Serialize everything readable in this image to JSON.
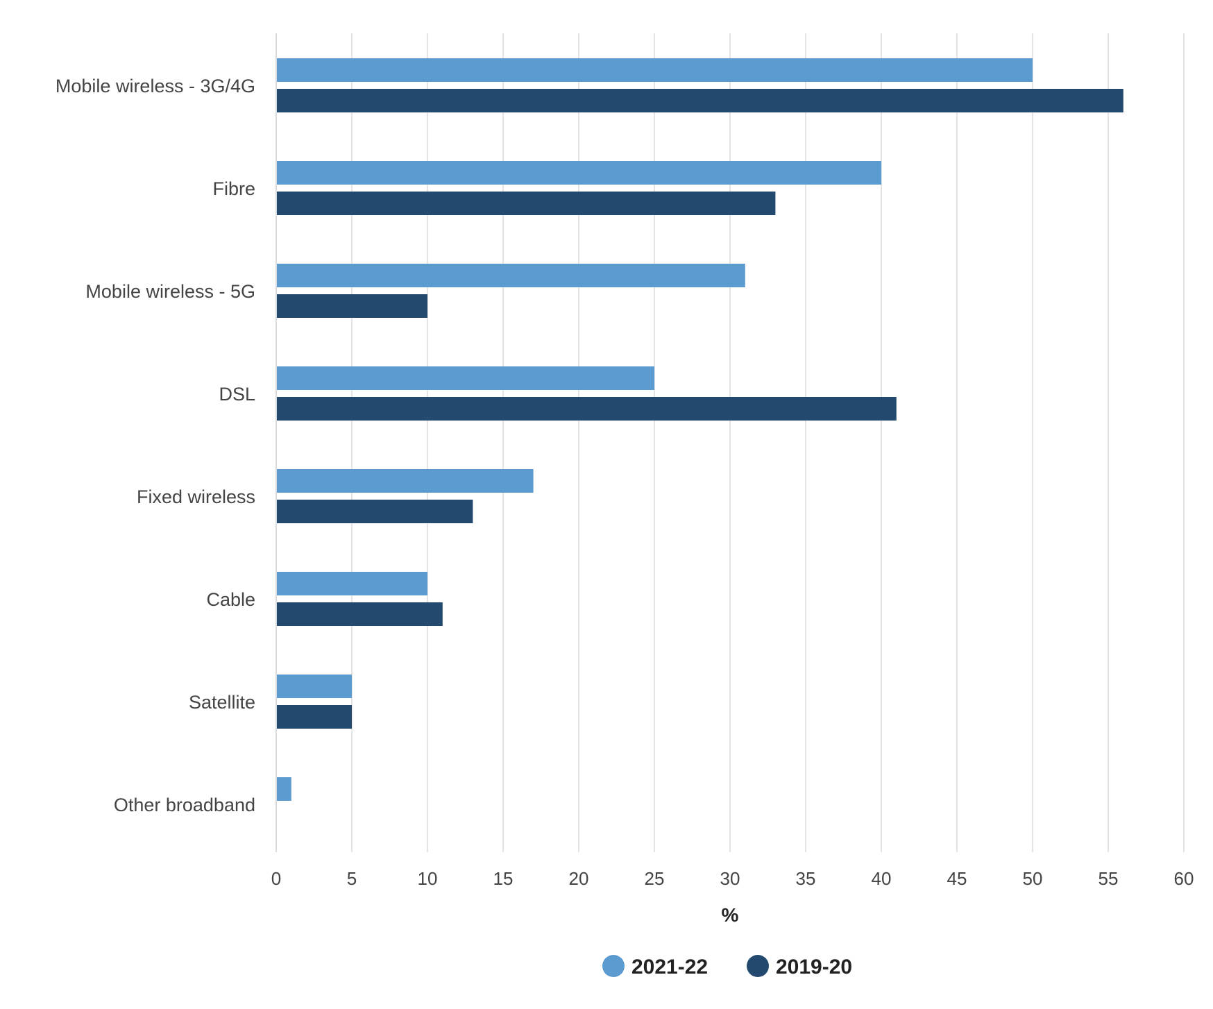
{
  "chart_data": {
    "type": "bar",
    "orientation": "horizontal",
    "categories": [
      "Mobile wireless - 3G/4G",
      "Fibre",
      "Mobile wireless - 5G",
      "DSL",
      "Fixed wireless",
      "Cable",
      "Satellite",
      "Other broadband"
    ],
    "series": [
      {
        "name": "2021-22",
        "color": "#5b9bd0",
        "values": [
          50,
          40,
          31,
          25,
          17,
          10,
          5,
          1
        ]
      },
      {
        "name": "2019-20",
        "color": "#234a6e",
        "values": [
          56,
          33,
          10,
          41,
          13,
          11,
          5,
          null
        ]
      }
    ],
    "xlabel": "%",
    "ylabel": "",
    "xlim": [
      0,
      60
    ],
    "x_ticks": [
      0,
      5,
      10,
      15,
      20,
      25,
      30,
      35,
      40,
      45,
      50,
      55,
      60
    ],
    "grid": true,
    "legend_position": "bottom-center"
  }
}
